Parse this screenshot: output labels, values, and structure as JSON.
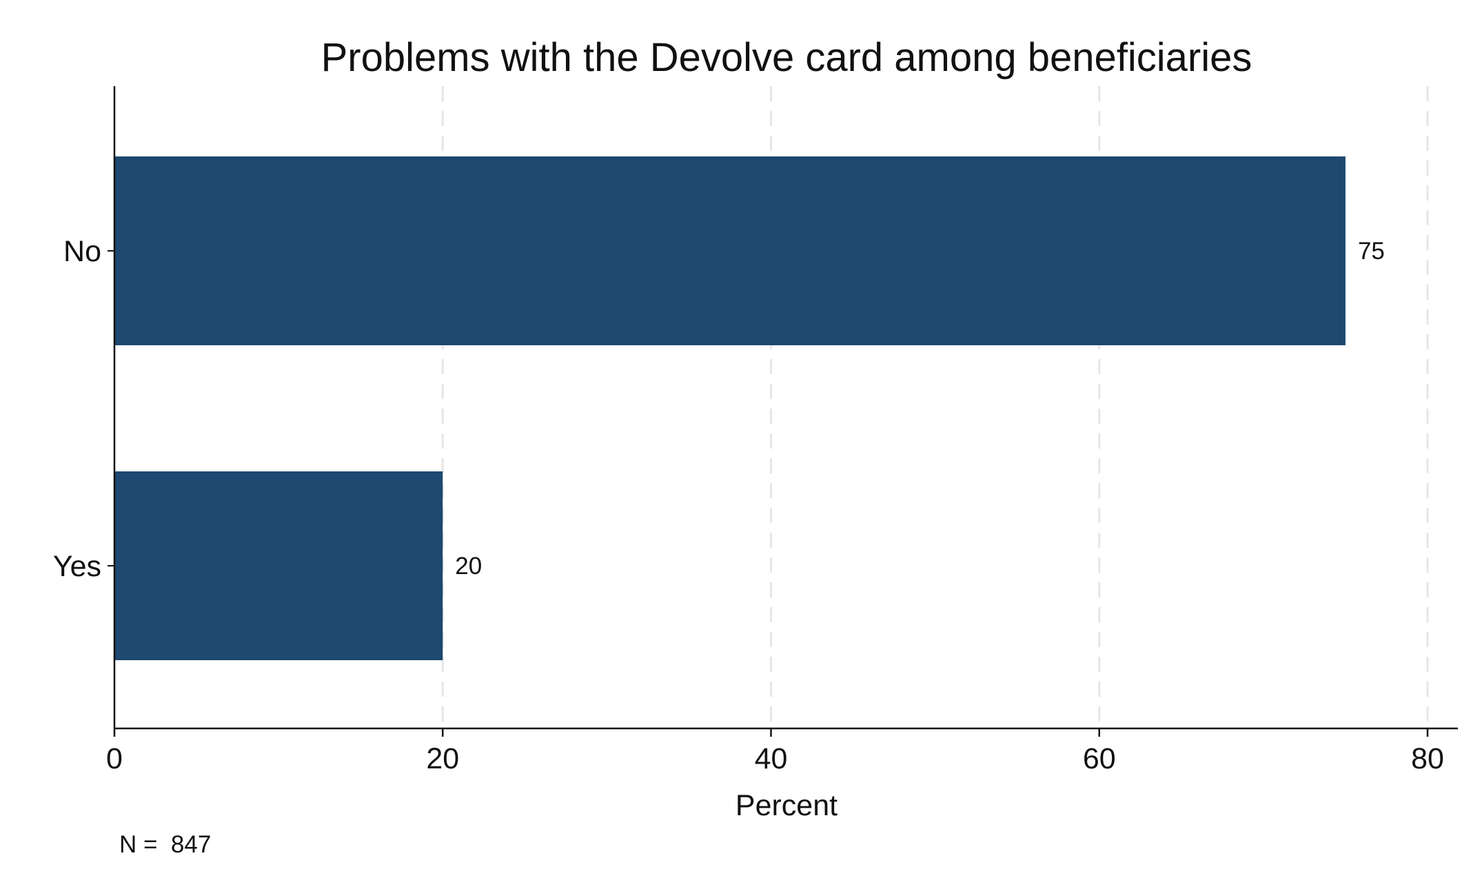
{
  "chart_data": {
    "type": "bar",
    "orientation": "horizontal",
    "title": "Problems with the Devolve card among beneficiaries",
    "xlabel": "Percent",
    "ylabel": "",
    "categories": [
      "No",
      "Yes"
    ],
    "values": [
      75,
      20
    ],
    "value_labels": [
      "75",
      "20"
    ],
    "xlim": [
      0,
      80
    ],
    "xticks": [
      0,
      20,
      40,
      60,
      80
    ],
    "grid": "vertical dashed",
    "legend": "none",
    "note": "N =  847",
    "colors": {
      "bar": "#1d4870",
      "grid": "#e6e6e6",
      "axis": "#111111"
    }
  }
}
